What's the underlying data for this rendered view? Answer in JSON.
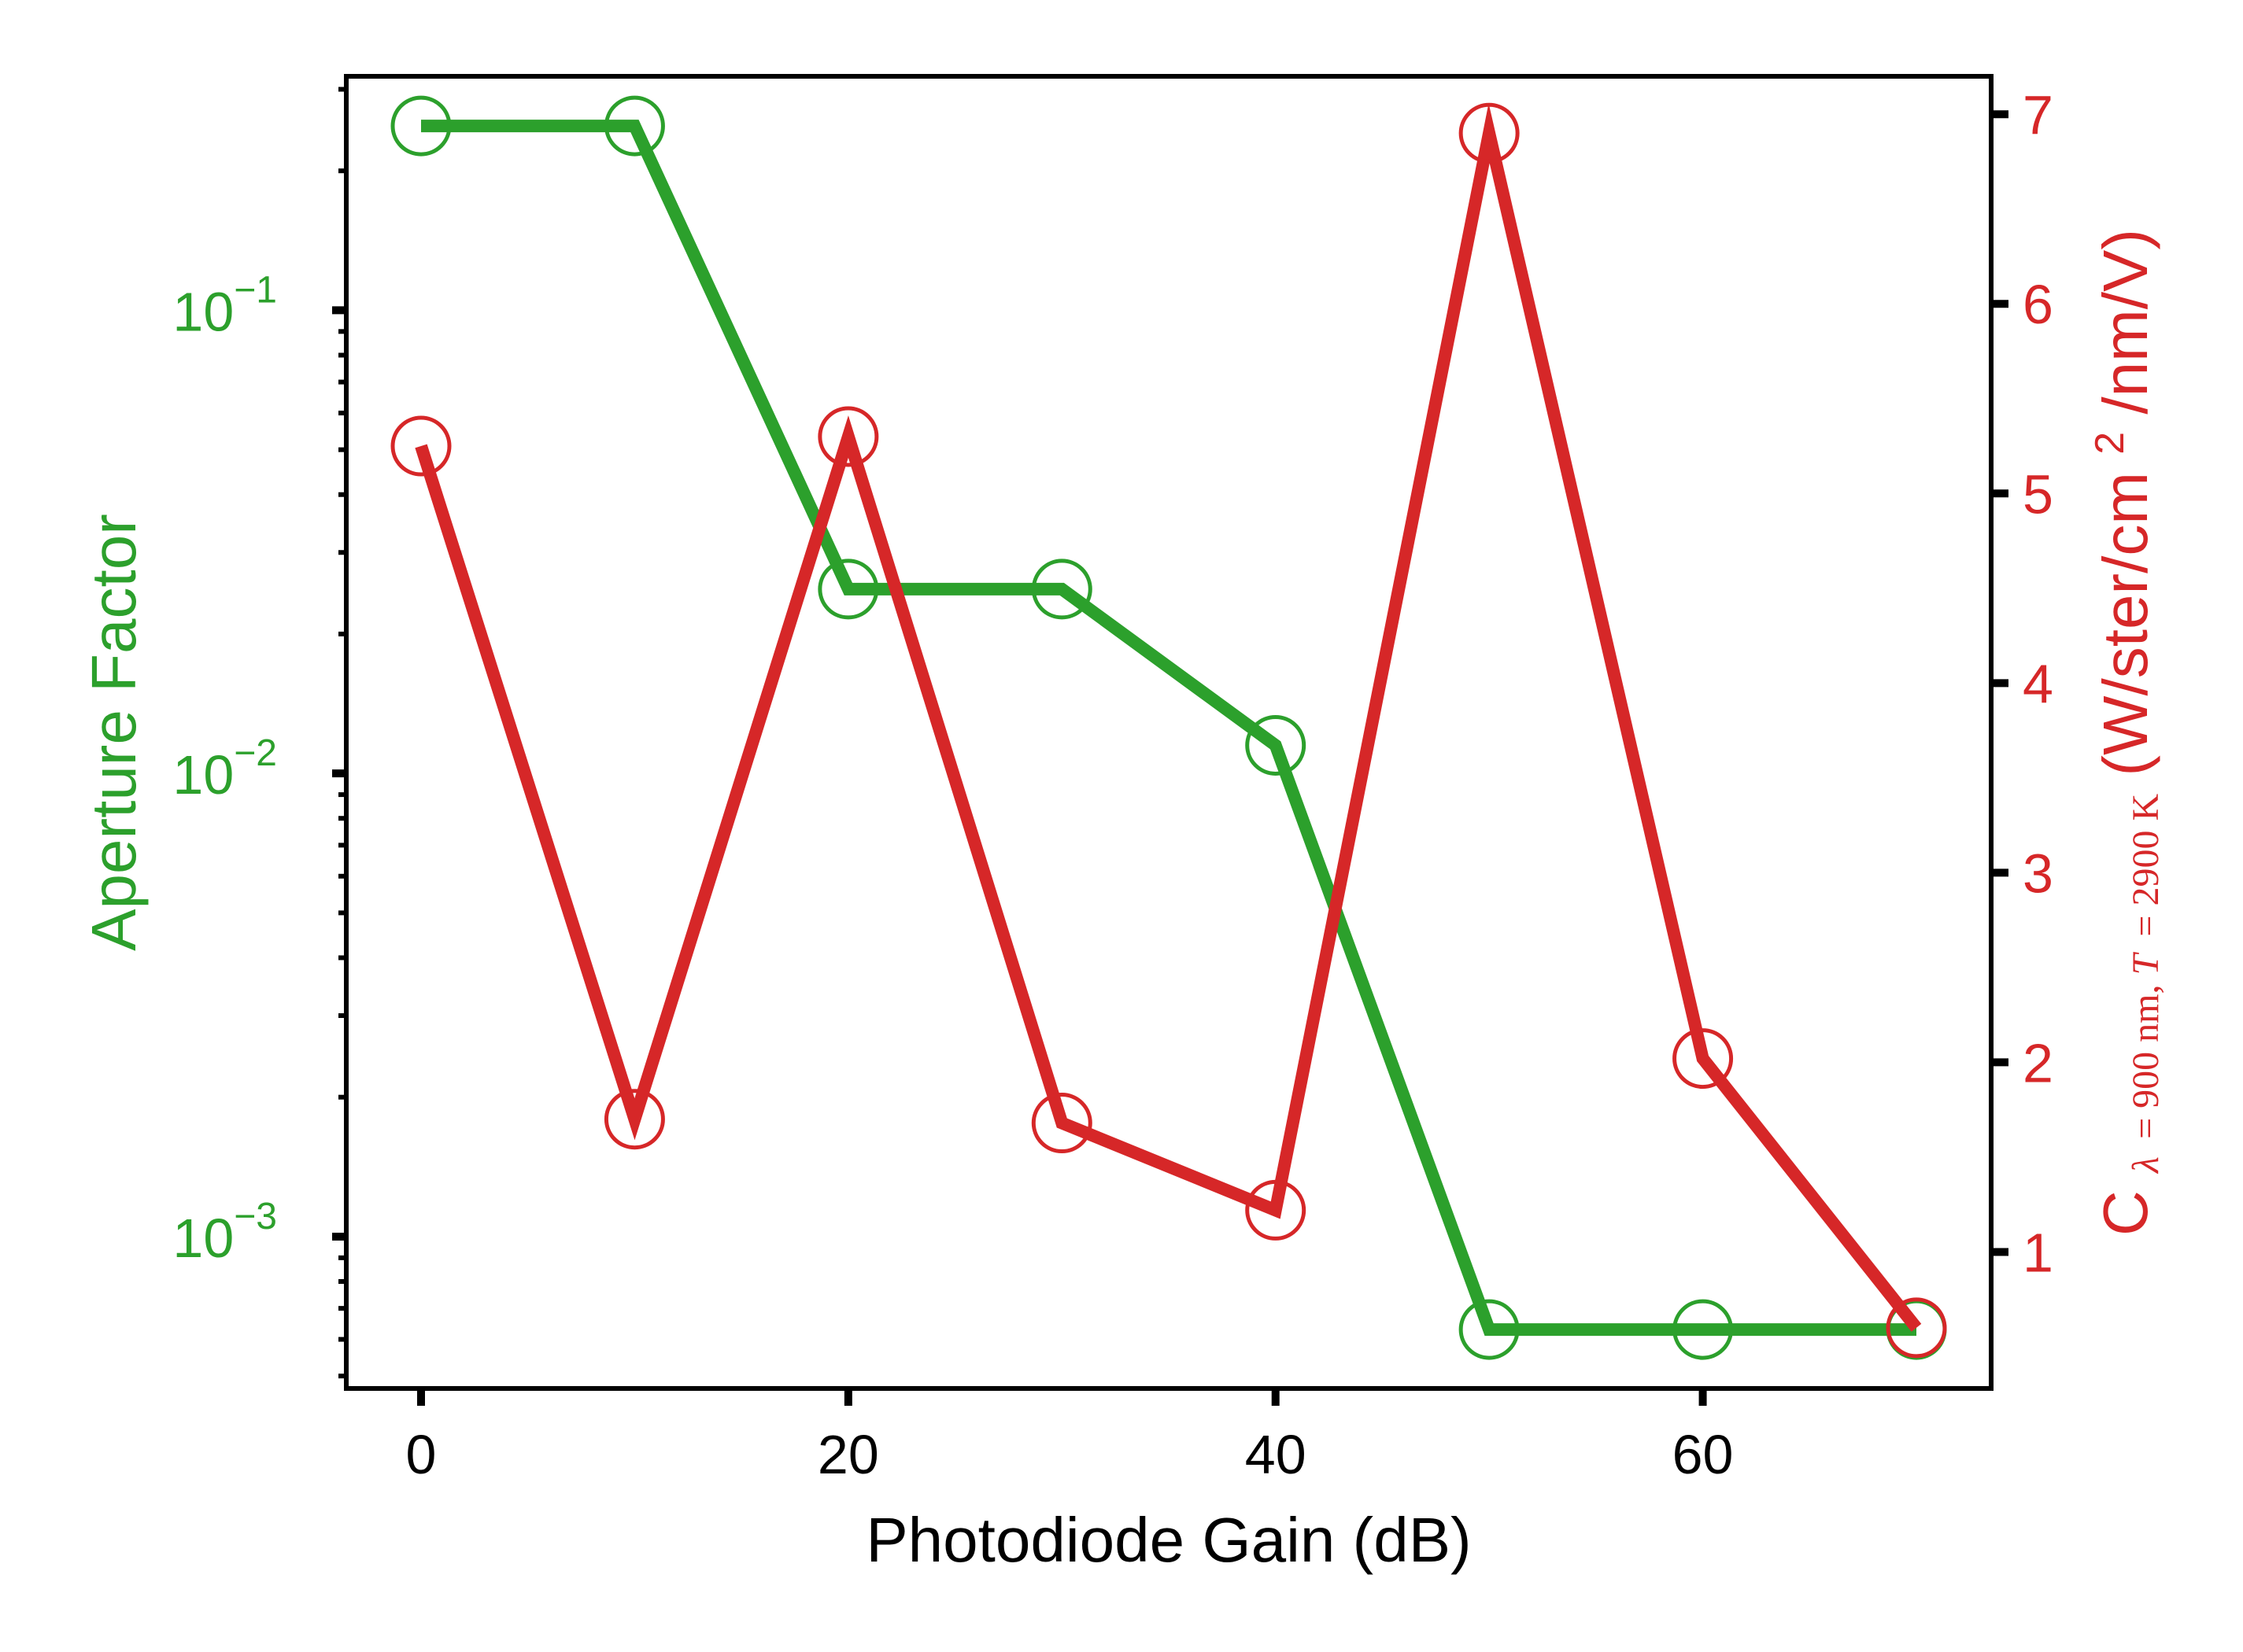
{
  "chart_data": {
    "type": "line",
    "xlabel": "Photodiode Gain (dB)",
    "xlim": [
      -3.5,
      73.5
    ],
    "xticks": [
      0,
      20,
      40,
      60
    ],
    "x": [
      0,
      10,
      20,
      30,
      40,
      50,
      60,
      70
    ],
    "left_axis": {
      "label": "Aperture Factor",
      "scale": "log",
      "ylim": [
        0.00047,
        0.32
      ],
      "ticks": [
        0.001,
        0.01,
        0.1
      ],
      "tick_labels": [
        {
          "base": "10",
          "exp": "−3"
        },
        {
          "base": "10",
          "exp": "−2"
        },
        {
          "base": "10",
          "exp": "−1"
        }
      ],
      "color": "#2ca02c"
    },
    "right_axis": {
      "label_parts": {
        "c": "C",
        "sub_lambda": "λ",
        "sub_rest": "= 900 nm, ",
        "sub_t": "T",
        "sub_t_rest": " = 2900 K",
        "units_pre": " (W/ster/cm",
        "units_sup": "2",
        "units_post": "/nm/V)"
      },
      "scale": "linear",
      "ylim": [
        0.28,
        7.2
      ],
      "ticks": [
        1,
        2,
        3,
        4,
        5,
        6,
        7
      ],
      "color": "#d62728"
    },
    "series": [
      {
        "axis": "left",
        "color": "#2ca02c",
        "values": [
          0.25,
          0.25,
          0.025,
          0.025,
          0.0115,
          0.00063,
          0.00063,
          0.00063
        ]
      },
      {
        "axis": "right",
        "color": "#d62728",
        "values": [
          5.25,
          1.7,
          5.3,
          1.68,
          1.22,
          6.9,
          2.02,
          0.6
        ]
      }
    ],
    "grid": false,
    "legend": "none"
  }
}
